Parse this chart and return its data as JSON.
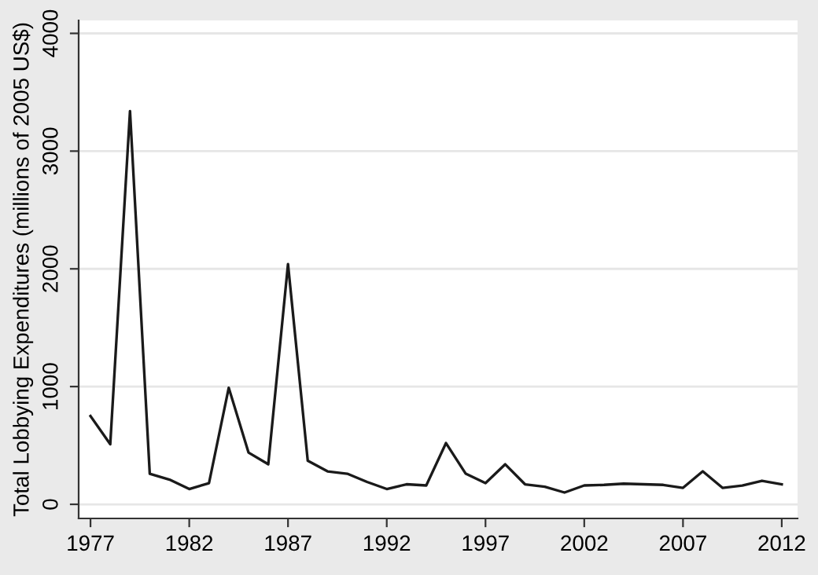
{
  "chart_data": {
    "type": "line",
    "ylabel": "Total Lobbying Expenditures (millions of 2005 US$)",
    "x": [
      1977,
      1978,
      1979,
      1980,
      1981,
      1982,
      1983,
      1984,
      1985,
      1986,
      1987,
      1988,
      1989,
      1990,
      1991,
      1992,
      1993,
      1994,
      1995,
      1996,
      1997,
      1998,
      1999,
      2000,
      2001,
      2002,
      2003,
      2004,
      2005,
      2006,
      2007,
      2008,
      2009,
      2010,
      2011,
      2012
    ],
    "series": [
      {
        "color": "#1a1a1a",
        "values": [
          750,
          510,
          3340,
          260,
          210,
          130,
          180,
          990,
          440,
          340,
          2040,
          370,
          280,
          260,
          190,
          130,
          170,
          160,
          520,
          260,
          180,
          340,
          170,
          150,
          100,
          160,
          165,
          175,
          170,
          165,
          140,
          280,
          140,
          160,
          200,
          170
        ]
      }
    ],
    "xlim": [
      1976.4,
      2012.8
    ],
    "xticks": [
      1977,
      1982,
      1987,
      1992,
      1997,
      2002,
      2007,
      2012
    ],
    "ylim": [
      -120,
      4110
    ],
    "yticks": [
      0,
      1000,
      2000,
      3000,
      4000
    ],
    "grid": "y",
    "marker": "none",
    "line_style": "solid",
    "legend": false
  }
}
